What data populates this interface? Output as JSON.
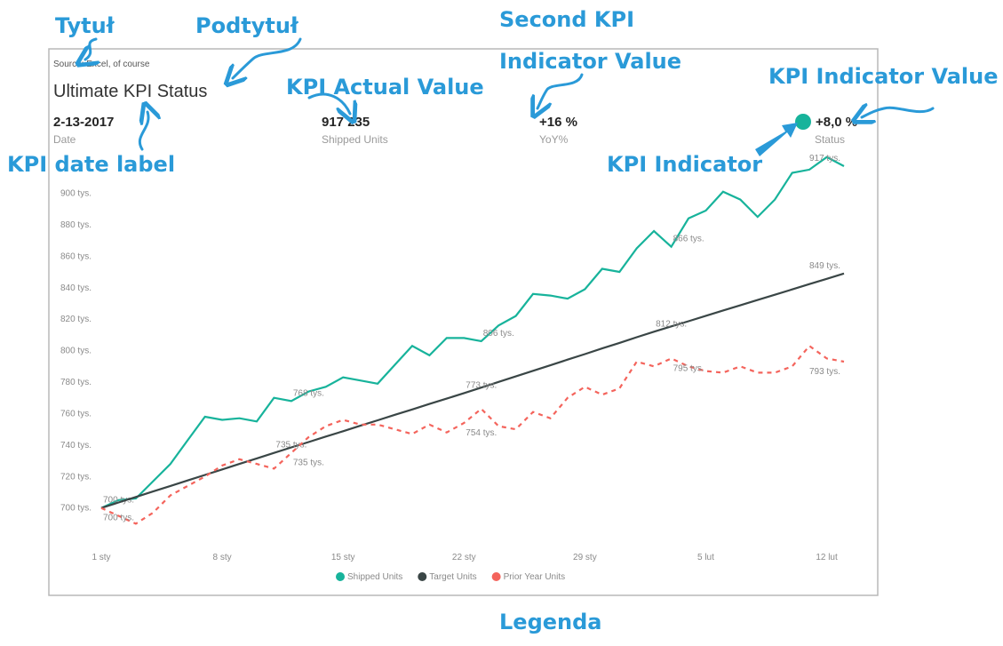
{
  "annotations": {
    "title_note": "Tytuł",
    "subtitle_note": "Podtytuł",
    "second_kpi_note": [
      "Second KPI",
      "Indicator Value"
    ],
    "actual_note": "KPI Actual Value",
    "indicator_value_note": "KPI Indicator Value",
    "date_note": "KPI date label",
    "indicator_note": "KPI Indicator",
    "legend_note": "Legenda"
  },
  "card": {
    "source": "Source: Excel, of course",
    "title": "Ultimate KPI Status",
    "kpis": [
      {
        "value": "2-13-2017",
        "label": "Date"
      },
      {
        "value": "917 235",
        "label": "Shipped Units"
      },
      {
        "value": "+16 %",
        "label": "YoY%"
      },
      {
        "value": "+8,0 %",
        "label": "Status",
        "indicator_color": "#17b39b"
      }
    ]
  },
  "chart_data": {
    "type": "line",
    "categories": [
      "1 sty",
      null,
      null,
      null,
      null,
      null,
      null,
      "8 sty",
      null,
      null,
      null,
      null,
      null,
      null,
      "15 sty",
      null,
      null,
      null,
      null,
      null,
      null,
      "22 sty",
      null,
      null,
      null,
      null,
      null,
      null,
      "29 sty",
      null,
      null,
      null,
      null,
      null,
      null,
      "5 lut",
      null,
      null,
      null,
      null,
      null,
      null,
      "12 lut",
      null
    ],
    "ylim": [
      684000,
      924000
    ],
    "yticks": [
      {
        "value": 700000,
        "label": "700 tys."
      },
      {
        "value": 720000,
        "label": "720 tys."
      },
      {
        "value": 740000,
        "label": "740 tys."
      },
      {
        "value": 760000,
        "label": "760 tys."
      },
      {
        "value": 780000,
        "label": "780 tys."
      },
      {
        "value": 800000,
        "label": "800 tys."
      },
      {
        "value": 820000,
        "label": "820 tys."
      },
      {
        "value": 840000,
        "label": "840 tys."
      },
      {
        "value": 860000,
        "label": "860 tys."
      },
      {
        "value": 880000,
        "label": "880 tys."
      },
      {
        "value": 900000,
        "label": "900 tys."
      }
    ],
    "grid": false,
    "legend": "bottom",
    "series": [
      {
        "name": "Shipped Units",
        "color": "#17b39b",
        "dashed": false,
        "values": [
          700000,
          705000,
          706000,
          717000,
          728000,
          743000,
          758000,
          756000,
          757000,
          755000,
          770000,
          768000,
          774000,
          777000,
          783000,
          781000,
          779000,
          791000,
          803000,
          797000,
          808000,
          808000,
          806000,
          816000,
          822000,
          836000,
          835000,
          833000,
          839000,
          852000,
          850000,
          865000,
          876000,
          866000,
          884000,
          889000,
          901000,
          896000,
          885000,
          896000,
          913000,
          915000,
          923000,
          917235
        ],
        "value_labels": [
          "700 tys.",
          null,
          null,
          null,
          null,
          null,
          null,
          null,
          null,
          null,
          null,
          "768 tys.",
          null,
          null,
          null,
          null,
          null,
          null,
          null,
          null,
          null,
          null,
          "806 tys.",
          null,
          null,
          null,
          null,
          null,
          null,
          null,
          null,
          null,
          null,
          "866 tys.",
          null,
          null,
          null,
          null,
          null,
          null,
          null,
          null,
          null,
          "917 tys."
        ]
      },
      {
        "name": "Target Units",
        "color": "#3a4646",
        "dashed": false,
        "values": [
          700000,
          703500,
          707000,
          710500,
          714000,
          717500,
          721000,
          724500,
          728000,
          731500,
          735000,
          738500,
          741900,
          745400,
          748800,
          752300,
          755700,
          759200,
          762600,
          766100,
          769500,
          773000,
          776500,
          780100,
          783600,
          787200,
          790700,
          794300,
          797800,
          801400,
          804900,
          808500,
          812000,
          815400,
          818700,
          822100,
          825500,
          828800,
          832200,
          835500,
          838900,
          842300,
          845600,
          849000
        ],
        "value_labels": [
          null,
          null,
          null,
          null,
          null,
          null,
          null,
          null,
          null,
          null,
          "735 tys.",
          null,
          null,
          null,
          null,
          null,
          null,
          null,
          null,
          null,
          null,
          "773 tys.",
          null,
          null,
          null,
          null,
          null,
          null,
          null,
          null,
          null,
          null,
          "812 tys.",
          null,
          null,
          null,
          null,
          null,
          null,
          null,
          null,
          null,
          null,
          "849 tys."
        ]
      },
      {
        "name": "Prior Year Units",
        "color": "#f4645c",
        "dashed": true,
        "values": [
          700000,
          695000,
          690000,
          697000,
          708000,
          714000,
          720000,
          727000,
          731000,
          728000,
          725000,
          735000,
          745000,
          752000,
          756000,
          753000,
          753000,
          750000,
          747000,
          753000,
          748000,
          754000,
          763000,
          752000,
          750000,
          761000,
          757000,
          770000,
          777000,
          772000,
          776000,
          793000,
          790000,
          795000,
          790000,
          787000,
          786000,
          790000,
          786000,
          786000,
          790000,
          803000,
          795000,
          793000
        ],
        "value_labels": [
          "700 tys.",
          null,
          null,
          null,
          null,
          null,
          null,
          null,
          null,
          null,
          null,
          "735 tys.",
          null,
          null,
          null,
          null,
          null,
          null,
          null,
          null,
          null,
          "754 tys.",
          null,
          null,
          null,
          null,
          null,
          null,
          null,
          null,
          null,
          null,
          null,
          "795 tys.",
          null,
          null,
          null,
          null,
          null,
          null,
          null,
          null,
          null,
          "793 tys."
        ]
      }
    ]
  }
}
